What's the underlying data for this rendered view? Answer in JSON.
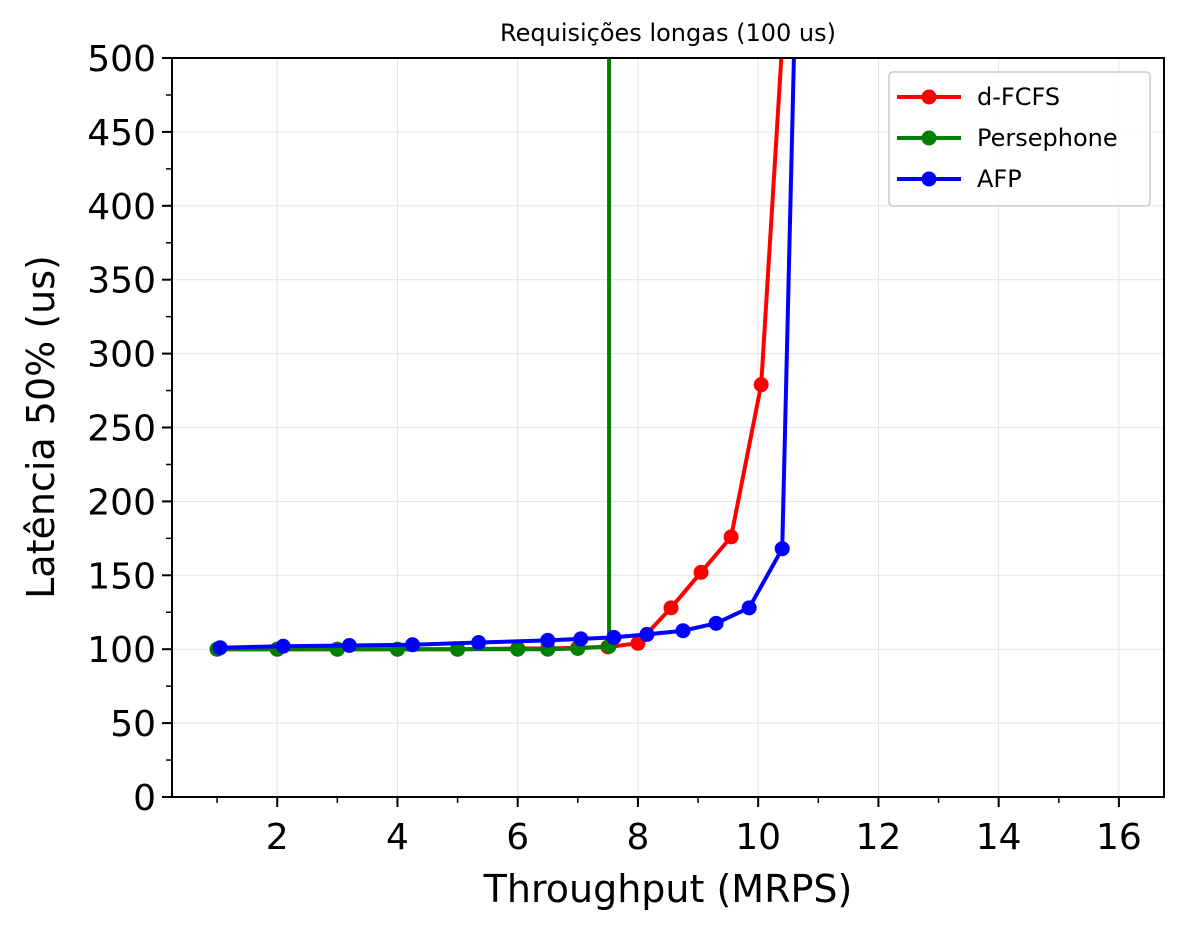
{
  "chart_data": {
    "type": "line",
    "title": "Requisições longas (100 us)",
    "xlabel": "Throughput (MRPS)",
    "ylabel": "Latência 50% (us)",
    "xlim": [
      0.25,
      16.75
    ],
    "ylim": [
      0,
      500
    ],
    "xticks": [
      2,
      4,
      6,
      8,
      10,
      12,
      14,
      16
    ],
    "xtick_labels": [
      "2",
      "4",
      "6",
      "8",
      "10",
      "12",
      "14",
      "16"
    ],
    "xminor": [
      1,
      3,
      5,
      7,
      9,
      11,
      13,
      15
    ],
    "yticks": [
      0,
      50,
      100,
      150,
      200,
      250,
      300,
      350,
      400,
      450,
      500
    ],
    "ytick_labels": [
      "0",
      "50",
      "100",
      "150",
      "200",
      "250",
      "300",
      "350",
      "400",
      "450",
      "500"
    ],
    "grid": true,
    "legend_position": "top-right",
    "series": [
      {
        "name": "d-FCFS",
        "color": "#ff0000",
        "points": [
          [
            1.0,
            100
          ],
          [
            2.0,
            100
          ],
          [
            3.0,
            100
          ],
          [
            4.0,
            100
          ],
          [
            5.0,
            100
          ],
          [
            6.0,
            100.5
          ],
          [
            6.5,
            100.5
          ],
          [
            7.0,
            101
          ],
          [
            7.5,
            101.5
          ],
          [
            8.0,
            104
          ],
          [
            8.55,
            128
          ],
          [
            9.05,
            152
          ],
          [
            9.55,
            176
          ],
          [
            10.05,
            279
          ],
          [
            10.4,
            510
          ]
        ]
      },
      {
        "name": "Persephone",
        "color": "#008000",
        "points": [
          [
            1.0,
            100
          ],
          [
            2.0,
            100
          ],
          [
            3.0,
            100
          ],
          [
            4.0,
            100
          ],
          [
            5.0,
            100
          ],
          [
            6.0,
            100
          ],
          [
            6.5,
            100
          ],
          [
            7.0,
            100.5
          ],
          [
            7.52,
            102
          ],
          [
            7.52,
            510
          ]
        ]
      },
      {
        "name": "AFP",
        "color": "#0000ff",
        "points": [
          [
            1.05,
            101
          ],
          [
            2.1,
            102
          ],
          [
            3.2,
            102.5
          ],
          [
            4.25,
            103
          ],
          [
            5.35,
            104.5
          ],
          [
            6.5,
            106
          ],
          [
            7.05,
            107
          ],
          [
            7.6,
            108
          ],
          [
            8.15,
            110
          ],
          [
            8.75,
            112.5
          ],
          [
            9.3,
            117.5
          ],
          [
            9.85,
            128
          ],
          [
            10.4,
            168
          ],
          [
            10.6,
            510
          ]
        ]
      }
    ]
  }
}
